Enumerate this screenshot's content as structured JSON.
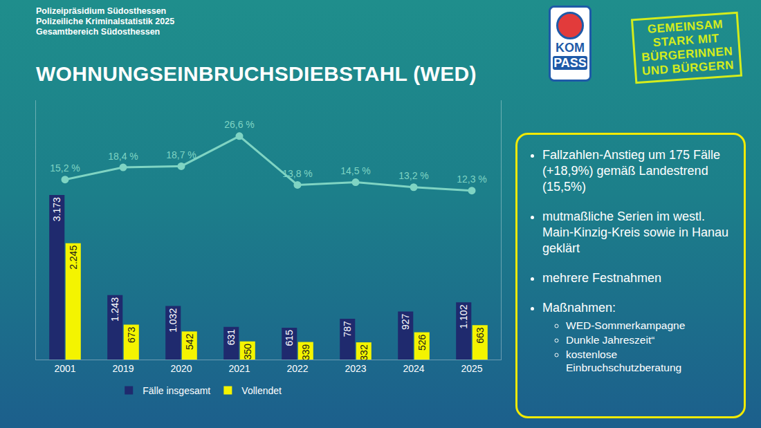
{
  "header": {
    "lines": [
      "Polizeipräsidium Südosthessen",
      "Polizeiliche Kriminalstatistik 2025",
      "Gesamtbereich Südosthessen"
    ],
    "title": "WOHNUNGSEINBRUCHSDIEBSTAHL (WED)"
  },
  "logo": {
    "text": [
      "KOM",
      "PASS"
    ]
  },
  "slogan": [
    "GEMEINSAM",
    "STARK MIT",
    "BÜRGERINNEN",
    "UND BÜRGERN"
  ],
  "info_box": {
    "bullets": [
      {
        "text": "Fallzahlen-Anstieg um 175 Fälle (+18,9%) gemäß Landestrend (15,5%)"
      },
      {
        "text": "mutmaßliche Serien im westl. Main-Kinzig-Kreis sowie in Hanau geklärt"
      },
      {
        "text": "mehrere Festnahmen"
      },
      {
        "text": "Maßnahmen:",
        "sub": [
          "WED-Sommerkampagne",
          "Dunkle Jahreszeit“",
          "kostenlose Einbruchschutzberatung"
        ]
      }
    ]
  },
  "chart_data": {
    "type": "bar",
    "categories": [
      "2001",
      "2019",
      "2020",
      "2021",
      "2022",
      "2023",
      "2024",
      "2025"
    ],
    "series": [
      {
        "name": "Fälle insgesamt",
        "type": "bar",
        "color": "#1f2a6e",
        "values": [
          3173,
          1243,
          1032,
          631,
          615,
          787,
          927,
          1102
        ],
        "value_labels": [
          "3.173",
          "1.243",
          "1.032",
          "631",
          "615",
          "787",
          "927",
          "1.102"
        ]
      },
      {
        "name": "Vollendet",
        "type": "bar",
        "color": "#f4f400",
        "values": [
          2245,
          673,
          542,
          350,
          339,
          332,
          526,
          663
        ],
        "value_labels": [
          "2.245",
          "673",
          "542",
          "350",
          "339",
          "332",
          "526",
          "663"
        ]
      },
      {
        "type": "line",
        "axis": "y2",
        "color": "#7fd4c3",
        "marker": "circle",
        "values": [
          15.2,
          18.4,
          18.7,
          26.6,
          13.8,
          14.5,
          13.2,
          12.3
        ],
        "value_labels": [
          "15,2 %",
          "18,4 %",
          "18,7 %",
          "26,6 %",
          "13,8 %",
          "14,5 %",
          "13,2 %",
          "12,3 %"
        ]
      }
    ],
    "ylim": [
      0,
      5000
    ],
    "y2lim": [
      -32,
      36
    ],
    "tick_labels": "x",
    "data_labels": true,
    "grid": false,
    "legend": "bottom"
  }
}
